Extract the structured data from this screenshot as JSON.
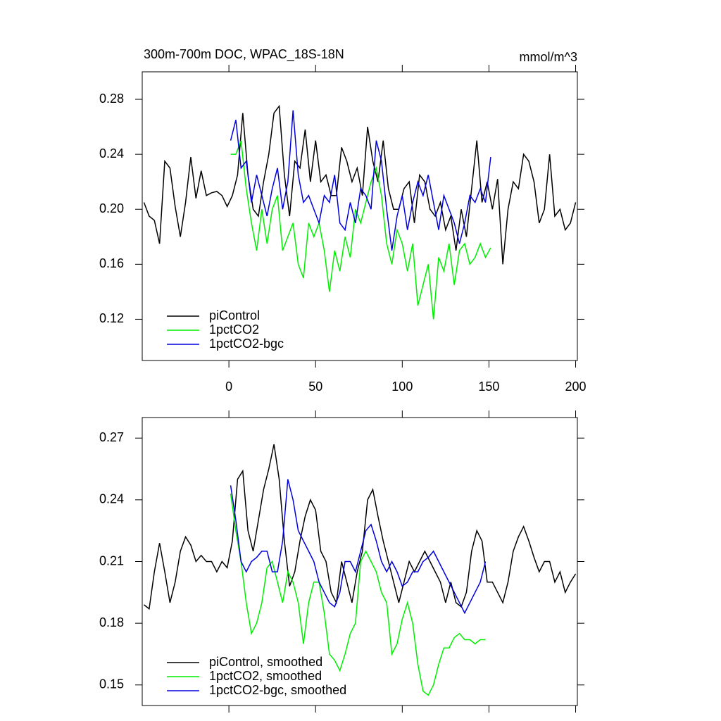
{
  "chart_data": [
    {
      "type": "line",
      "title": "300m-700m DOC, WPAC_18S-18N",
      "units": "mmol/m^3",
      "xlim": [
        -50,
        201
      ],
      "xticks": [
        0,
        50,
        100,
        150,
        200
      ],
      "xtick_labels": true,
      "ylim": [
        0.09,
        0.3
      ],
      "yticks": [
        0.12,
        0.16,
        {
          "value": 0.2,
          "label": "0.20"
        },
        0.24,
        0.28
      ],
      "legend": "lower left",
      "series": [
        {
          "name": "piControl",
          "color": "#000000",
          "x": [
            -49,
            -46,
            -43,
            -40,
            -37,
            -34,
            -31,
            -28,
            -25,
            -22,
            -19,
            -16,
            -13,
            -10,
            -7,
            -4,
            -1,
            2,
            5,
            8,
            11,
            14,
            17,
            20,
            23,
            26,
            29,
            32,
            35,
            38,
            41,
            44,
            47,
            50,
            53,
            56,
            59,
            62,
            65,
            68,
            71,
            74,
            77,
            80,
            83,
            86,
            89,
            92,
            95,
            98,
            101,
            104,
            107,
            110,
            113,
            116,
            119,
            122,
            125,
            128,
            131,
            134,
            137,
            140,
            143,
            146,
            149,
            152,
            155,
            158,
            161,
            164,
            167,
            170,
            173,
            176,
            179,
            182,
            185,
            188,
            191,
            194,
            197,
            200
          ],
          "values": [
            0.205,
            0.195,
            0.192,
            0.175,
            0.235,
            0.23,
            0.202,
            0.18,
            0.205,
            0.238,
            0.208,
            0.228,
            0.21,
            0.212,
            0.213,
            0.21,
            0.202,
            0.21,
            0.225,
            0.27,
            0.225,
            0.2,
            0.195,
            0.22,
            0.24,
            0.27,
            0.275,
            0.225,
            0.195,
            0.235,
            0.23,
            0.258,
            0.22,
            0.25,
            0.22,
            0.225,
            0.21,
            0.21,
            0.245,
            0.235,
            0.22,
            0.23,
            0.21,
            0.26,
            0.235,
            0.22,
            0.25,
            0.215,
            0.2,
            0.2,
            0.215,
            0.22,
            0.19,
            0.225,
            0.22,
            0.2,
            0.195,
            0.205,
            0.185,
            0.195,
            0.17,
            0.2,
            0.18,
            0.215,
            0.25,
            0.205,
            0.22,
            0.2,
            0.222,
            0.16,
            0.2,
            0.22,
            0.215,
            0.24,
            0.235,
            0.22,
            0.19,
            0.2,
            0.24,
            0.195,
            0.2,
            0.185,
            0.19,
            0.205
          ]
        },
        {
          "name": "1pctCO2",
          "color": "#00ee00",
          "x": [
            1,
            4,
            7,
            10,
            13,
            16,
            19,
            22,
            25,
            28,
            31,
            34,
            37,
            40,
            43,
            46,
            49,
            52,
            55,
            58,
            61,
            64,
            67,
            70,
            73,
            76,
            79,
            82,
            85,
            88,
            91,
            94,
            97,
            100,
            103,
            106,
            109,
            112,
            115,
            118,
            121,
            124,
            127,
            130,
            133,
            136,
            139,
            142,
            145,
            148,
            151
          ],
          "values": [
            0.24,
            0.24,
            0.25,
            0.215,
            0.19,
            0.17,
            0.2,
            0.175,
            0.2,
            0.21,
            0.17,
            0.18,
            0.19,
            0.16,
            0.15,
            0.19,
            0.18,
            0.19,
            0.17,
            0.14,
            0.17,
            0.155,
            0.18,
            0.165,
            0.2,
            0.19,
            0.205,
            0.22,
            0.23,
            0.21,
            0.175,
            0.16,
            0.185,
            0.175,
            0.155,
            0.175,
            0.13,
            0.145,
            0.16,
            0.12,
            0.165,
            0.155,
            0.175,
            0.145,
            0.17,
            0.175,
            0.16,
            0.165,
            0.175,
            0.165,
            0.172
          ]
        },
        {
          "name": "1pctCO2-bgc",
          "color": "#0000dd",
          "x": [
            1,
            4,
            7,
            10,
            13,
            16,
            19,
            22,
            25,
            28,
            31,
            34,
            37,
            40,
            43,
            46,
            49,
            52,
            55,
            58,
            61,
            64,
            67,
            70,
            73,
            76,
            79,
            82,
            85,
            88,
            91,
            94,
            97,
            100,
            103,
            106,
            109,
            112,
            115,
            118,
            121,
            124,
            127,
            130,
            133,
            136,
            139,
            142,
            145,
            148,
            151
          ],
          "values": [
            0.25,
            0.265,
            0.23,
            0.235,
            0.205,
            0.225,
            0.21,
            0.195,
            0.215,
            0.23,
            0.2,
            0.22,
            0.272,
            0.225,
            0.205,
            0.21,
            0.2,
            0.19,
            0.21,
            0.205,
            0.225,
            0.19,
            0.185,
            0.205,
            0.19,
            0.215,
            0.21,
            0.2,
            0.25,
            0.235,
            0.2,
            0.17,
            0.195,
            0.21,
            0.185,
            0.205,
            0.22,
            0.21,
            0.225,
            0.205,
            0.185,
            0.21,
            0.2,
            0.19,
            0.175,
            0.19,
            0.21,
            0.205,
            0.215,
            0.205,
            0.238
          ]
        }
      ]
    },
    {
      "type": "line",
      "xlim": [
        -50,
        201
      ],
      "xticks": [
        0,
        50,
        100,
        150,
        200
      ],
      "xtick_labels": false,
      "ylim": [
        0.14,
        0.28
      ],
      "yticks": [
        0.15,
        0.18,
        0.21,
        0.24,
        0.27
      ],
      "legend": "lower left",
      "series": [
        {
          "name": "piControl, smoothed",
          "color": "#000000",
          "x": [
            -49,
            -46,
            -43,
            -40,
            -37,
            -34,
            -31,
            -28,
            -25,
            -22,
            -19,
            -16,
            -13,
            -10,
            -7,
            -4,
            -1,
            2,
            5,
            8,
            11,
            14,
            17,
            20,
            23,
            26,
            29,
            32,
            35,
            38,
            41,
            44,
            47,
            50,
            53,
            56,
            59,
            62,
            65,
            68,
            71,
            74,
            77,
            80,
            83,
            86,
            89,
            92,
            95,
            98,
            101,
            104,
            107,
            110,
            113,
            116,
            119,
            122,
            125,
            128,
            131,
            134,
            137,
            140,
            143,
            146,
            149,
            152,
            155,
            158,
            161,
            164,
            167,
            170,
            173,
            176,
            179,
            182,
            185,
            188,
            191,
            194,
            197,
            200
          ],
          "values": [
            0.189,
            0.187,
            0.205,
            0.219,
            0.205,
            0.19,
            0.2,
            0.215,
            0.222,
            0.218,
            0.21,
            0.213,
            0.21,
            0.21,
            0.205,
            0.21,
            0.207,
            0.22,
            0.25,
            0.254,
            0.225,
            0.215,
            0.23,
            0.245,
            0.255,
            0.267,
            0.25,
            0.22,
            0.198,
            0.205,
            0.22,
            0.232,
            0.24,
            0.235,
            0.215,
            0.21,
            0.195,
            0.19,
            0.21,
            0.2,
            0.19,
            0.205,
            0.215,
            0.24,
            0.245,
            0.232,
            0.22,
            0.21,
            0.2,
            0.19,
            0.2,
            0.21,
            0.205,
            0.21,
            0.215,
            0.21,
            0.205,
            0.2,
            0.19,
            0.2,
            0.19,
            0.188,
            0.195,
            0.215,
            0.225,
            0.22,
            0.2,
            0.2,
            0.195,
            0.19,
            0.2,
            0.215,
            0.222,
            0.227,
            0.22,
            0.212,
            0.205,
            0.21,
            0.21,
            0.2,
            0.205,
            0.195,
            0.2,
            0.204
          ]
        },
        {
          "name": "1pctCO2, smoothed",
          "color": "#00ee00",
          "x": [
            1,
            4,
            7,
            10,
            13,
            16,
            19,
            22,
            25,
            28,
            31,
            34,
            37,
            40,
            43,
            46,
            49,
            52,
            55,
            58,
            61,
            64,
            67,
            70,
            73,
            76,
            79,
            82,
            85,
            88,
            91,
            94,
            97,
            100,
            103,
            106,
            109,
            112,
            115,
            118,
            121,
            124,
            127,
            130,
            133,
            136,
            139,
            142,
            145,
            148
          ],
          "values": [
            0.243,
            0.225,
            0.21,
            0.19,
            0.175,
            0.18,
            0.19,
            0.207,
            0.21,
            0.2,
            0.19,
            0.205,
            0.2,
            0.19,
            0.17,
            0.19,
            0.2,
            0.2,
            0.185,
            0.165,
            0.162,
            0.157,
            0.165,
            0.175,
            0.18,
            0.21,
            0.215,
            0.21,
            0.205,
            0.195,
            0.19,
            0.165,
            0.17,
            0.182,
            0.19,
            0.18,
            0.16,
            0.147,
            0.145,
            0.15,
            0.16,
            0.168,
            0.168,
            0.173,
            0.175,
            0.172,
            0.172,
            0.17,
            0.172,
            0.172
          ]
        },
        {
          "name": "1pctCO2-bgc, smoothed",
          "color": "#0000dd",
          "x": [
            1,
            4,
            7,
            10,
            13,
            16,
            19,
            22,
            25,
            28,
            31,
            34,
            37,
            40,
            43,
            46,
            49,
            52,
            55,
            58,
            61,
            64,
            67,
            70,
            73,
            76,
            79,
            82,
            85,
            88,
            91,
            94,
            97,
            100,
            103,
            106,
            109,
            112,
            115,
            118,
            121,
            124,
            127,
            130,
            133,
            136,
            139,
            142,
            145,
            148
          ],
          "values": [
            0.247,
            0.23,
            0.21,
            0.205,
            0.21,
            0.212,
            0.215,
            0.215,
            0.205,
            0.205,
            0.22,
            0.25,
            0.24,
            0.225,
            0.22,
            0.215,
            0.21,
            0.2,
            0.195,
            0.19,
            0.188,
            0.195,
            0.21,
            0.21,
            0.205,
            0.215,
            0.225,
            0.228,
            0.22,
            0.21,
            0.205,
            0.21,
            0.205,
            0.198,
            0.2,
            0.205,
            0.205,
            0.21,
            0.212,
            0.215,
            0.21,
            0.205,
            0.2,
            0.195,
            0.19,
            0.185,
            0.19,
            0.195,
            0.2,
            0.21
          ]
        }
      ]
    }
  ]
}
